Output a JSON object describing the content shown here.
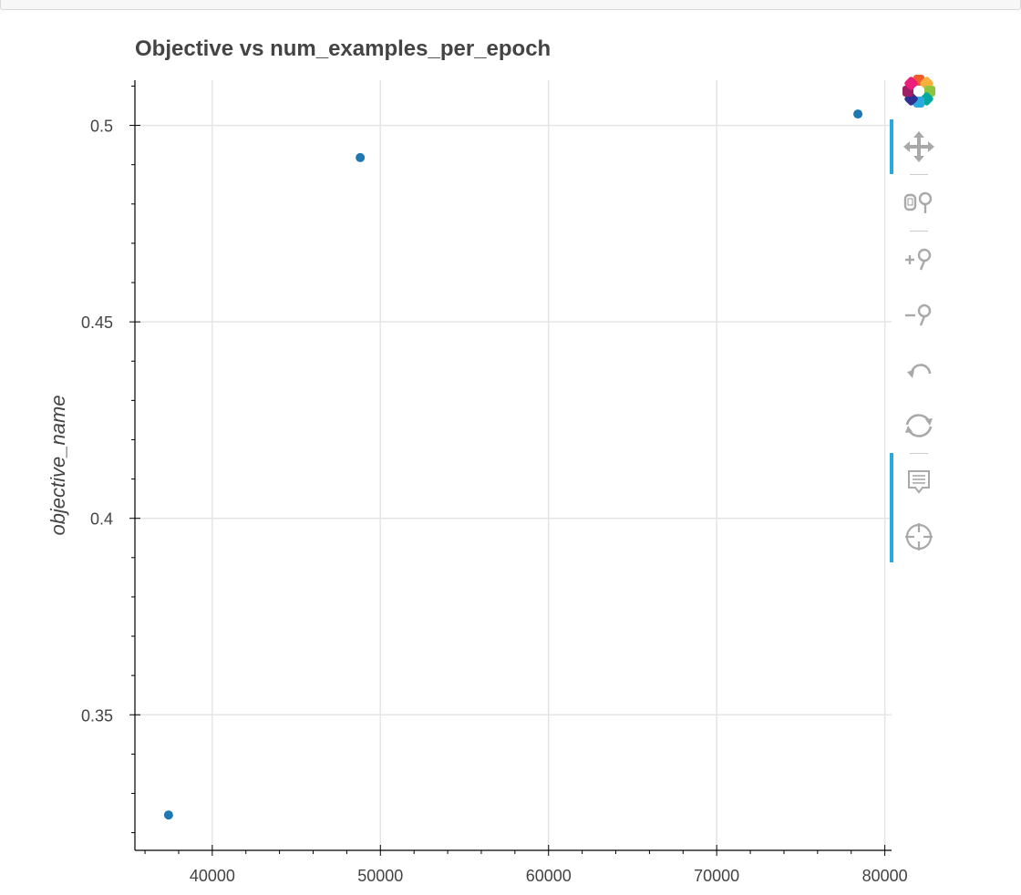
{
  "title": "Objective vs num_examples_per_epoch",
  "toolbar": {
    "tools": [
      "bokeh-logo",
      "pan-tool",
      "box-zoom-tool",
      "zoom-in-tool",
      "zoom-out-tool",
      "undo-tool",
      "reset-tool",
      "hover-tool",
      "crosshair-tool"
    ],
    "active_color": "#26aae1",
    "icon_color": "#a9a9a9"
  },
  "chart_data": {
    "type": "scatter",
    "title": "Objective vs num_examples_per_epoch",
    "xlabel": "",
    "ylabel": "objective_name",
    "xlim": [
      35400,
      80400
    ],
    "ylim": [
      0.3155,
      0.5115
    ],
    "x_ticks": [
      40000,
      50000,
      60000,
      70000,
      80000
    ],
    "x_tick_labels": [
      "40000",
      "50000",
      "60000",
      "70000",
      "80000"
    ],
    "y_ticks": [
      0.35,
      0.4,
      0.45,
      0.5
    ],
    "y_tick_labels": [
      "0.35",
      "0.4",
      "0.45",
      "0.5"
    ],
    "grid": true,
    "marker_color": "#1f77b4",
    "points": [
      {
        "x": 37400,
        "y": 0.3245
      },
      {
        "x": 48800,
        "y": 0.4918
      },
      {
        "x": 78400,
        "y": 0.5029
      }
    ]
  }
}
